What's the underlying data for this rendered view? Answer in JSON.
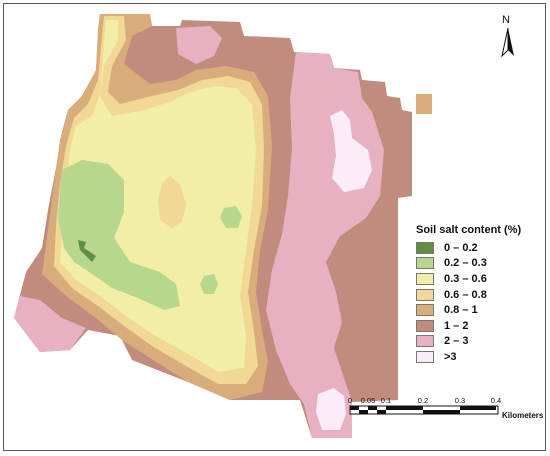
{
  "legend": {
    "title": "Soil salt content (%)",
    "items": [
      {
        "label": "0 – 0.2",
        "color": "#5f8f45"
      },
      {
        "label": "0.2 – 0.3",
        "color": "#b7d68e"
      },
      {
        "label": "0.3 – 0.6",
        "color": "#f2eda7"
      },
      {
        "label": "0.6 – 0.8",
        "color": "#f1d894"
      },
      {
        "label": "0.8 – 1",
        "color": "#d9ac7c"
      },
      {
        "label": "1 – 2",
        "color": "#c18c7e"
      },
      {
        "label": "2 – 3",
        "color": "#e8b1c1"
      },
      {
        "label": ">3",
        "color": "#fcecf7"
      }
    ]
  },
  "north_arrow": {
    "letter": "N",
    "icon": "north-arrow-icon"
  },
  "scale_bar": {
    "ticks": [
      "0",
      "0.05",
      "0.1",
      "0.2",
      "0.3",
      "0.4"
    ],
    "unit": "Kilometers"
  }
}
